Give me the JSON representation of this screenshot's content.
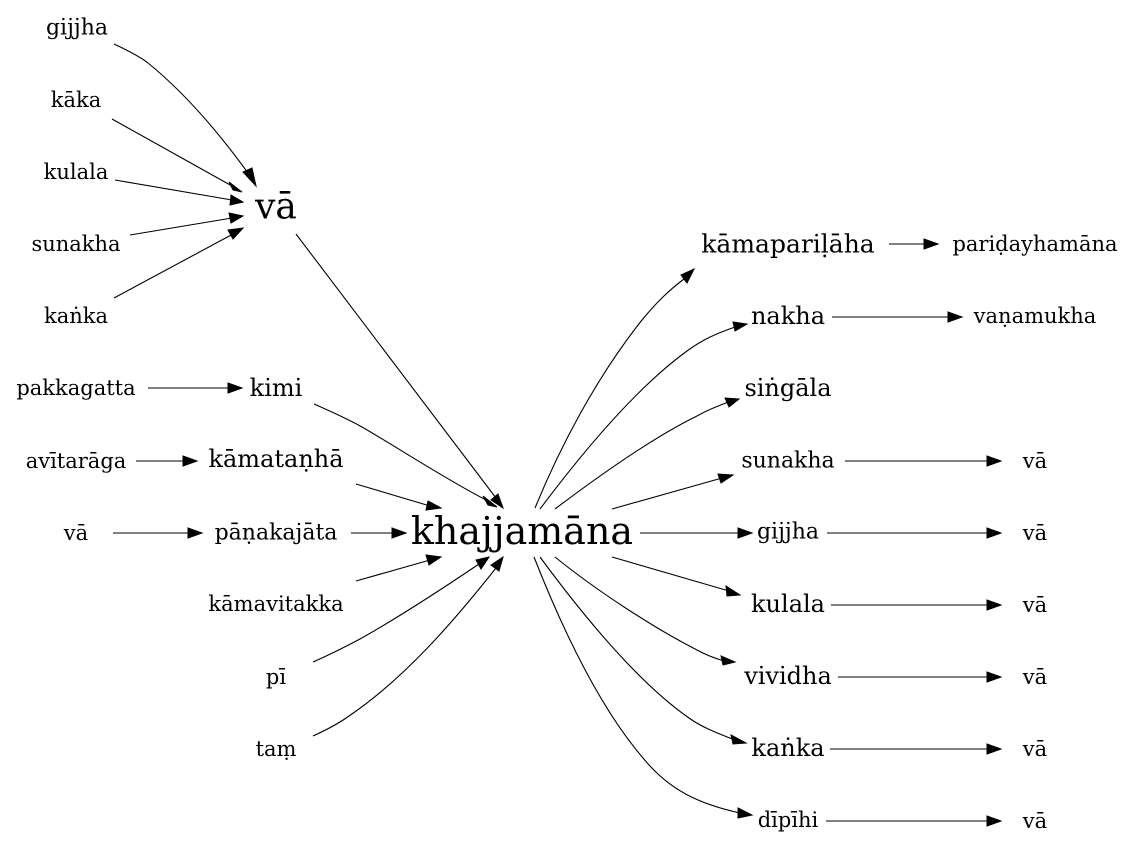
{
  "graph": {
    "nodes": {
      "gijjha_top": "gijjha",
      "kaka": "kāka",
      "kulala_top": "kulala",
      "sunakha_top": "sunakha",
      "kanka_top": "kaṅka",
      "va_top": "vā",
      "pakkagatta": "pakkagatta",
      "kimi": "kimi",
      "avitaraga": "avītarāga",
      "kamatanha": "kāmataṇhā",
      "va_left": "vā",
      "panakajata": "pāṇakajāta",
      "kamavitakka": "kāmavitakka",
      "pi": "pī",
      "tam": "taṃ",
      "center": "khajjamāna",
      "kamaparilaha": "kāmapariḷāha",
      "paridayhamana": "pariḍayhamāna",
      "nakha": "nakha",
      "vanamukha": "vaṇamukha",
      "singala": "siṅgāla",
      "sunakha_r": "sunakha",
      "va_r1": "vā",
      "gijjha_r": "gijjha",
      "va_r2": "vā",
      "kulala_r": "kulala",
      "va_r3": "vā",
      "vividha": "vividha",
      "va_r4": "vā",
      "kanka_r": "kaṅka",
      "va_r5": "vā",
      "dipihi": "dīpīhi",
      "va_r6": "vā"
    }
  }
}
